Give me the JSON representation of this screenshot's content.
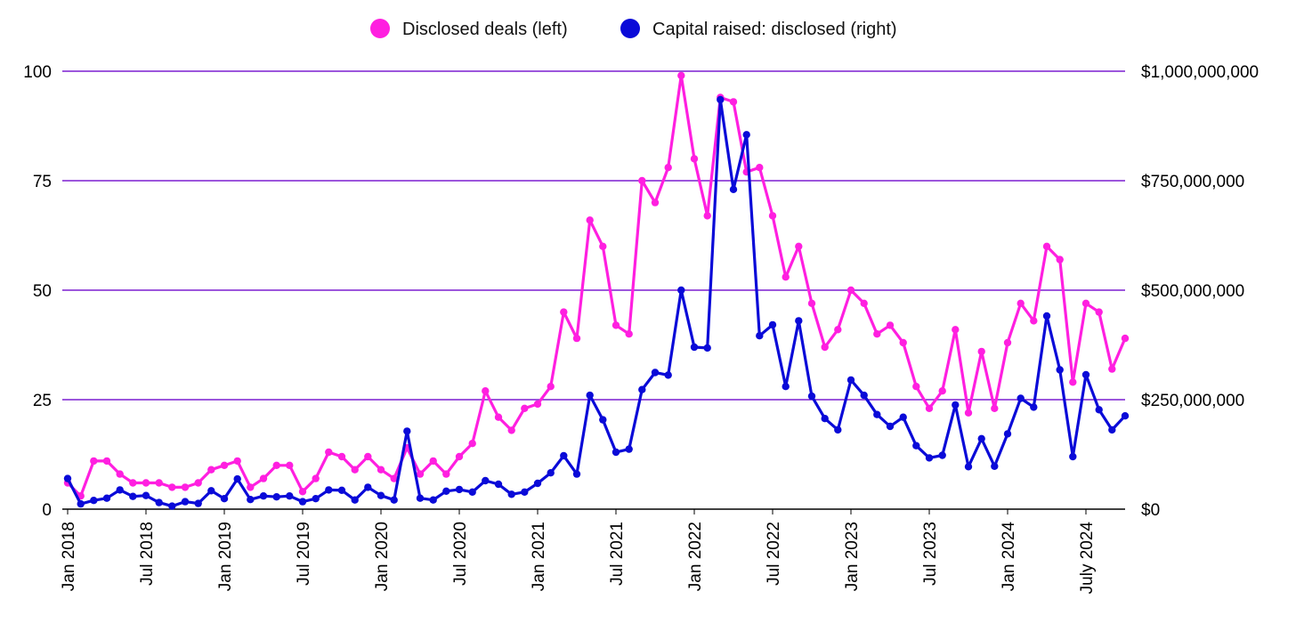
{
  "colors": {
    "deals": "#ff1fe0",
    "capital": "#0a0ad8",
    "grid": "#7c1fd1",
    "baseline": "#000000",
    "text": "#000000"
  },
  "chart_data": {
    "type": "line",
    "title": "",
    "legend": {
      "placement": "top-center",
      "items": [
        "Disclosed deals (left)",
        "Capital raised: disclosed (right)"
      ]
    },
    "grid": true,
    "x_axis": {
      "tick_labels": [
        "Jan 2018",
        "Jul 2018",
        "Jan 2019",
        "Jul 2019",
        "Jan 2020",
        "Jul 2020",
        "Jan 2021",
        "Jul 2021",
        "Jan 2022",
        "Jul 2022",
        "Jan 2023",
        "Jul 2023",
        "Jan 2024",
        "July 2024"
      ],
      "tick_month_index": [
        0,
        6,
        12,
        18,
        24,
        30,
        36,
        42,
        48,
        54,
        60,
        66,
        72,
        78
      ],
      "range_month_index": [
        0,
        81
      ]
    },
    "y_left": {
      "ylim": [
        0,
        100
      ],
      "ticks": [
        0,
        25,
        50,
        75,
        100
      ],
      "tick_labels": [
        "0",
        "25",
        "50",
        "75",
        "100"
      ]
    },
    "y_right": {
      "ylim": [
        0,
        1000000000
      ],
      "ticks": [
        0,
        250000000,
        500000000,
        750000000,
        1000000000
      ],
      "tick_labels": [
        "$0",
        "$250,000,000",
        "$500,000,000",
        "$750,000,000",
        "$1,000,000,000"
      ]
    },
    "x_month_index": [
      0,
      1,
      2,
      3,
      4,
      5,
      6,
      7,
      8,
      9,
      10,
      11,
      12,
      13,
      14,
      15,
      16,
      17,
      18,
      19,
      20,
      21,
      22,
      23,
      24,
      25,
      26,
      27,
      28,
      29,
      30,
      31,
      32,
      33,
      34,
      35,
      36,
      37,
      38,
      39,
      40,
      41,
      42,
      43,
      44,
      45,
      46,
      47,
      48,
      49,
      50,
      51,
      52,
      53,
      54,
      55,
      56,
      57,
      58,
      59,
      60,
      61,
      62,
      63,
      64,
      65,
      66,
      67,
      68,
      69,
      70,
      71,
      72,
      73,
      74,
      75,
      76,
      77,
      78,
      79,
      80,
      81
    ],
    "series": [
      {
        "name": "Disclosed deals (left)",
        "axis": "left",
        "values": [
          6,
          3,
          11,
          11,
          8,
          6,
          6,
          6,
          5,
          5,
          6,
          9,
          10,
          11,
          5,
          7,
          10,
          10,
          4,
          7,
          13,
          12,
          9,
          12,
          9,
          7,
          14,
          8,
          11,
          8,
          12,
          15,
          27,
          21,
          18,
          23,
          24,
          28,
          45,
          39,
          66,
          60,
          42,
          40,
          75,
          70,
          78,
          99,
          80,
          67,
          94,
          93,
          77,
          78,
          67,
          53,
          60,
          47,
          37,
          41,
          50,
          47,
          40,
          42,
          38,
          28,
          23,
          27,
          41,
          22,
          36,
          23,
          38,
          47,
          43,
          60,
          57,
          29,
          47,
          45,
          32,
          39
        ]
      },
      {
        "name": "Capital raised: disclosed (right)",
        "axis": "right",
        "values": [
          70000000,
          12000000,
          20000000,
          25000000,
          44000000,
          29000000,
          31000000,
          15000000,
          7000000,
          17000000,
          13000000,
          42000000,
          24000000,
          69000000,
          22000000,
          30000000,
          28000000,
          30000000,
          17000000,
          24000000,
          44000000,
          43000000,
          21000000,
          50000000,
          31000000,
          21000000,
          178000000,
          25000000,
          21000000,
          41000000,
          45000000,
          39000000,
          65000000,
          57000000,
          34000000,
          39000000,
          59000000,
          83000000,
          122000000,
          80000000,
          260000000,
          204000000,
          130000000,
          137000000,
          273000000,
          312000000,
          306000000,
          500000000,
          370000000,
          368000000,
          935000000,
          730000000,
          855000000,
          396000000,
          421000000,
          280000000,
          430000000,
          258000000,
          207000000,
          181000000,
          295000000,
          260000000,
          216000000,
          189000000,
          210000000,
          145000000,
          117000000,
          123000000,
          238000000,
          97000000,
          161000000,
          98000000,
          172000000,
          253000000,
          233000000,
          441000000,
          318000000,
          120000000,
          307000000,
          227000000,
          181000000,
          213000000
        ]
      }
    ]
  }
}
